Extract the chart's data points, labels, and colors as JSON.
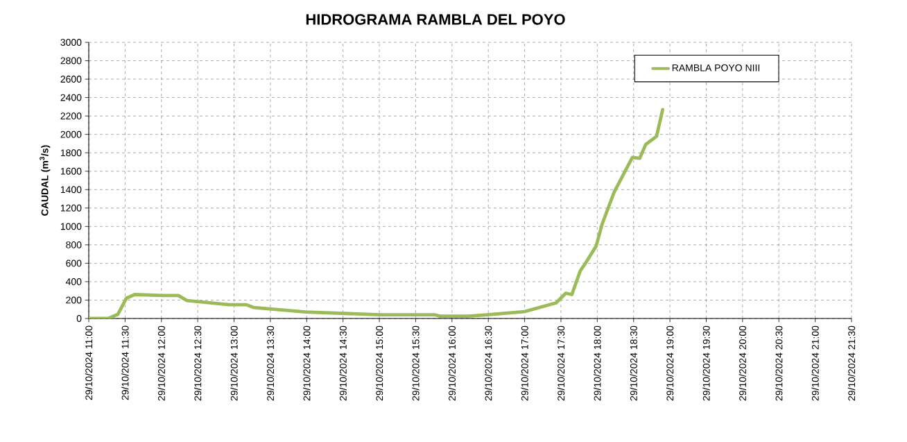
{
  "chart_data": {
    "type": "line",
    "title": "HIDROGRAMA RAMBLA DEL POYO",
    "ylabel": "CAUDAL (m$^{3}$/s)",
    "x": [
      "2024-10-29T11:00",
      "2024-10-29T11:16",
      "2024-10-29T11:24",
      "2024-10-29T11:31",
      "2024-10-29T11:38",
      "2024-10-29T12:01",
      "2024-10-29T12:14",
      "2024-10-29T12:21",
      "2024-10-29T12:56",
      "2024-10-29T13:10",
      "2024-10-29T13:16",
      "2024-10-29T13:59",
      "2024-10-29T15:01",
      "2024-10-29T15:46",
      "2024-10-29T15:50",
      "2024-10-29T16:14",
      "2024-10-29T16:29",
      "2024-10-29T17:00",
      "2024-10-29T17:26",
      "2024-10-29T17:34",
      "2024-10-29T17:39",
      "2024-10-29T17:46",
      "2024-10-29T17:50",
      "2024-10-29T17:59",
      "2024-10-29T18:04",
      "2024-10-29T18:14",
      "2024-10-29T18:23",
      "2024-10-29T18:29",
      "2024-10-29T18:35",
      "2024-10-29T18:40",
      "2024-10-29T18:49",
      "2024-10-29T18:54"
    ],
    "series": [
      {
        "name": "RAMBLA POYO NIII",
        "color": "#9bbb59",
        "values": [
          0,
          0,
          45,
          220,
          260,
          250,
          250,
          195,
          150,
          150,
          120,
          70,
          40,
          40,
          25,
          25,
          40,
          75,
          170,
          275,
          260,
          520,
          595,
          785,
          1025,
          1375,
          1600,
          1750,
          1740,
          1890,
          1980,
          2270
        ]
      }
    ],
    "xlim": [
      "2024-10-29T11:00",
      "2024-10-29T21:30"
    ],
    "xticks": [
      {
        "value": "2024-10-29T11:00",
        "label": "29/10/2024 11:00"
      },
      {
        "value": "2024-10-29T11:30",
        "label": "29/10/2024 11:30"
      },
      {
        "value": "2024-10-29T12:00",
        "label": "29/10/2024 12:00"
      },
      {
        "value": "2024-10-29T12:30",
        "label": "29/10/2024 12:30"
      },
      {
        "value": "2024-10-29T13:00",
        "label": "29/10/2024 13:00"
      },
      {
        "value": "2024-10-29T13:30",
        "label": "29/10/2024 13:30"
      },
      {
        "value": "2024-10-29T14:00",
        "label": "29/10/2024 14:00"
      },
      {
        "value": "2024-10-29T14:30",
        "label": "29/10/2024 14:30"
      },
      {
        "value": "2024-10-29T15:00",
        "label": "29/10/2024 15:00"
      },
      {
        "value": "2024-10-29T15:30",
        "label": "29/10/2024 15:30"
      },
      {
        "value": "2024-10-29T16:00",
        "label": "29/10/2024 16:00"
      },
      {
        "value": "2024-10-29T16:30",
        "label": "29/10/2024 16:30"
      },
      {
        "value": "2024-10-29T17:00",
        "label": "29/10/2024 17:00"
      },
      {
        "value": "2024-10-29T17:30",
        "label": "29/10/2024 17:30"
      },
      {
        "value": "2024-10-29T18:00",
        "label": "29/10/2024 18:00"
      },
      {
        "value": "2024-10-29T18:30",
        "label": "29/10/2024 18:30"
      },
      {
        "value": "2024-10-29T19:00",
        "label": "29/10/2024 19:00"
      },
      {
        "value": "2024-10-29T19:30",
        "label": "29/10/2024 19:30"
      },
      {
        "value": "2024-10-29T20:00",
        "label": "29/10/2024 20:00"
      },
      {
        "value": "2024-10-29T20:30",
        "label": "29/10/2024 20:30"
      },
      {
        "value": "2024-10-29T21:00",
        "label": "29/10/2024 21:00"
      },
      {
        "value": "2024-10-29T21:30",
        "label": "29/10/2024 21:30"
      }
    ],
    "ylim": [
      0,
      3000
    ],
    "yticks": [
      0,
      200,
      400,
      600,
      800,
      1000,
      1200,
      1400,
      1600,
      1800,
      2000,
      2200,
      2400,
      2600,
      2800,
      3000
    ],
    "grid": true,
    "legend": "top right",
    "marker": "none",
    "line_style": "solid"
  }
}
